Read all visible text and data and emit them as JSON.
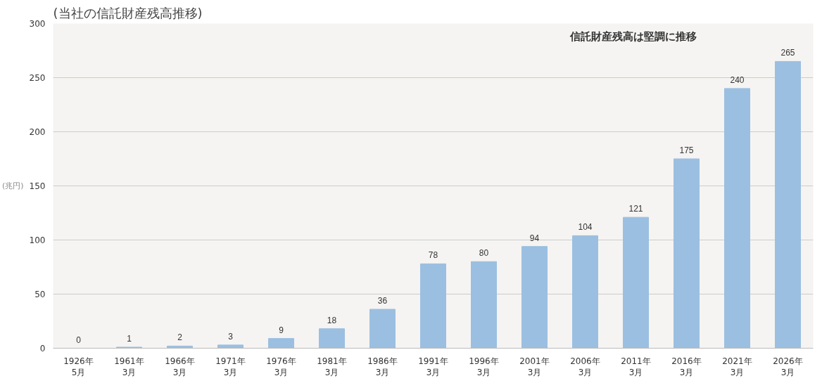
{
  "chart_data": {
    "type": "bar",
    "title": "(当社の信託財産残高推移)",
    "ylabel": "(兆円)",
    "categories": [
      "1926年\n5月",
      "1961年\n3月",
      "1966年\n3月",
      "1971年\n3月",
      "1976年\n3月",
      "1981年\n3月",
      "1986年\n3月",
      "1991年\n3月",
      "1996年\n3月",
      "2001年\n3月",
      "2006年\n3月",
      "2011年\n3月",
      "2016年\n3月",
      "2021年\n3月",
      "2026年\n3月"
    ],
    "values": [
      0,
      1,
      2,
      3,
      9,
      18,
      36,
      78,
      80,
      94,
      104,
      121,
      175,
      240,
      265
    ],
    "color": "#9bbfe0",
    "ylim": [
      0,
      300
    ],
    "yticks": [
      0,
      50,
      100,
      150,
      200,
      250,
      300
    ],
    "grid": "y",
    "data_labels": true,
    "annotations": [
      "信託財産残高は堅調に推移"
    ]
  }
}
